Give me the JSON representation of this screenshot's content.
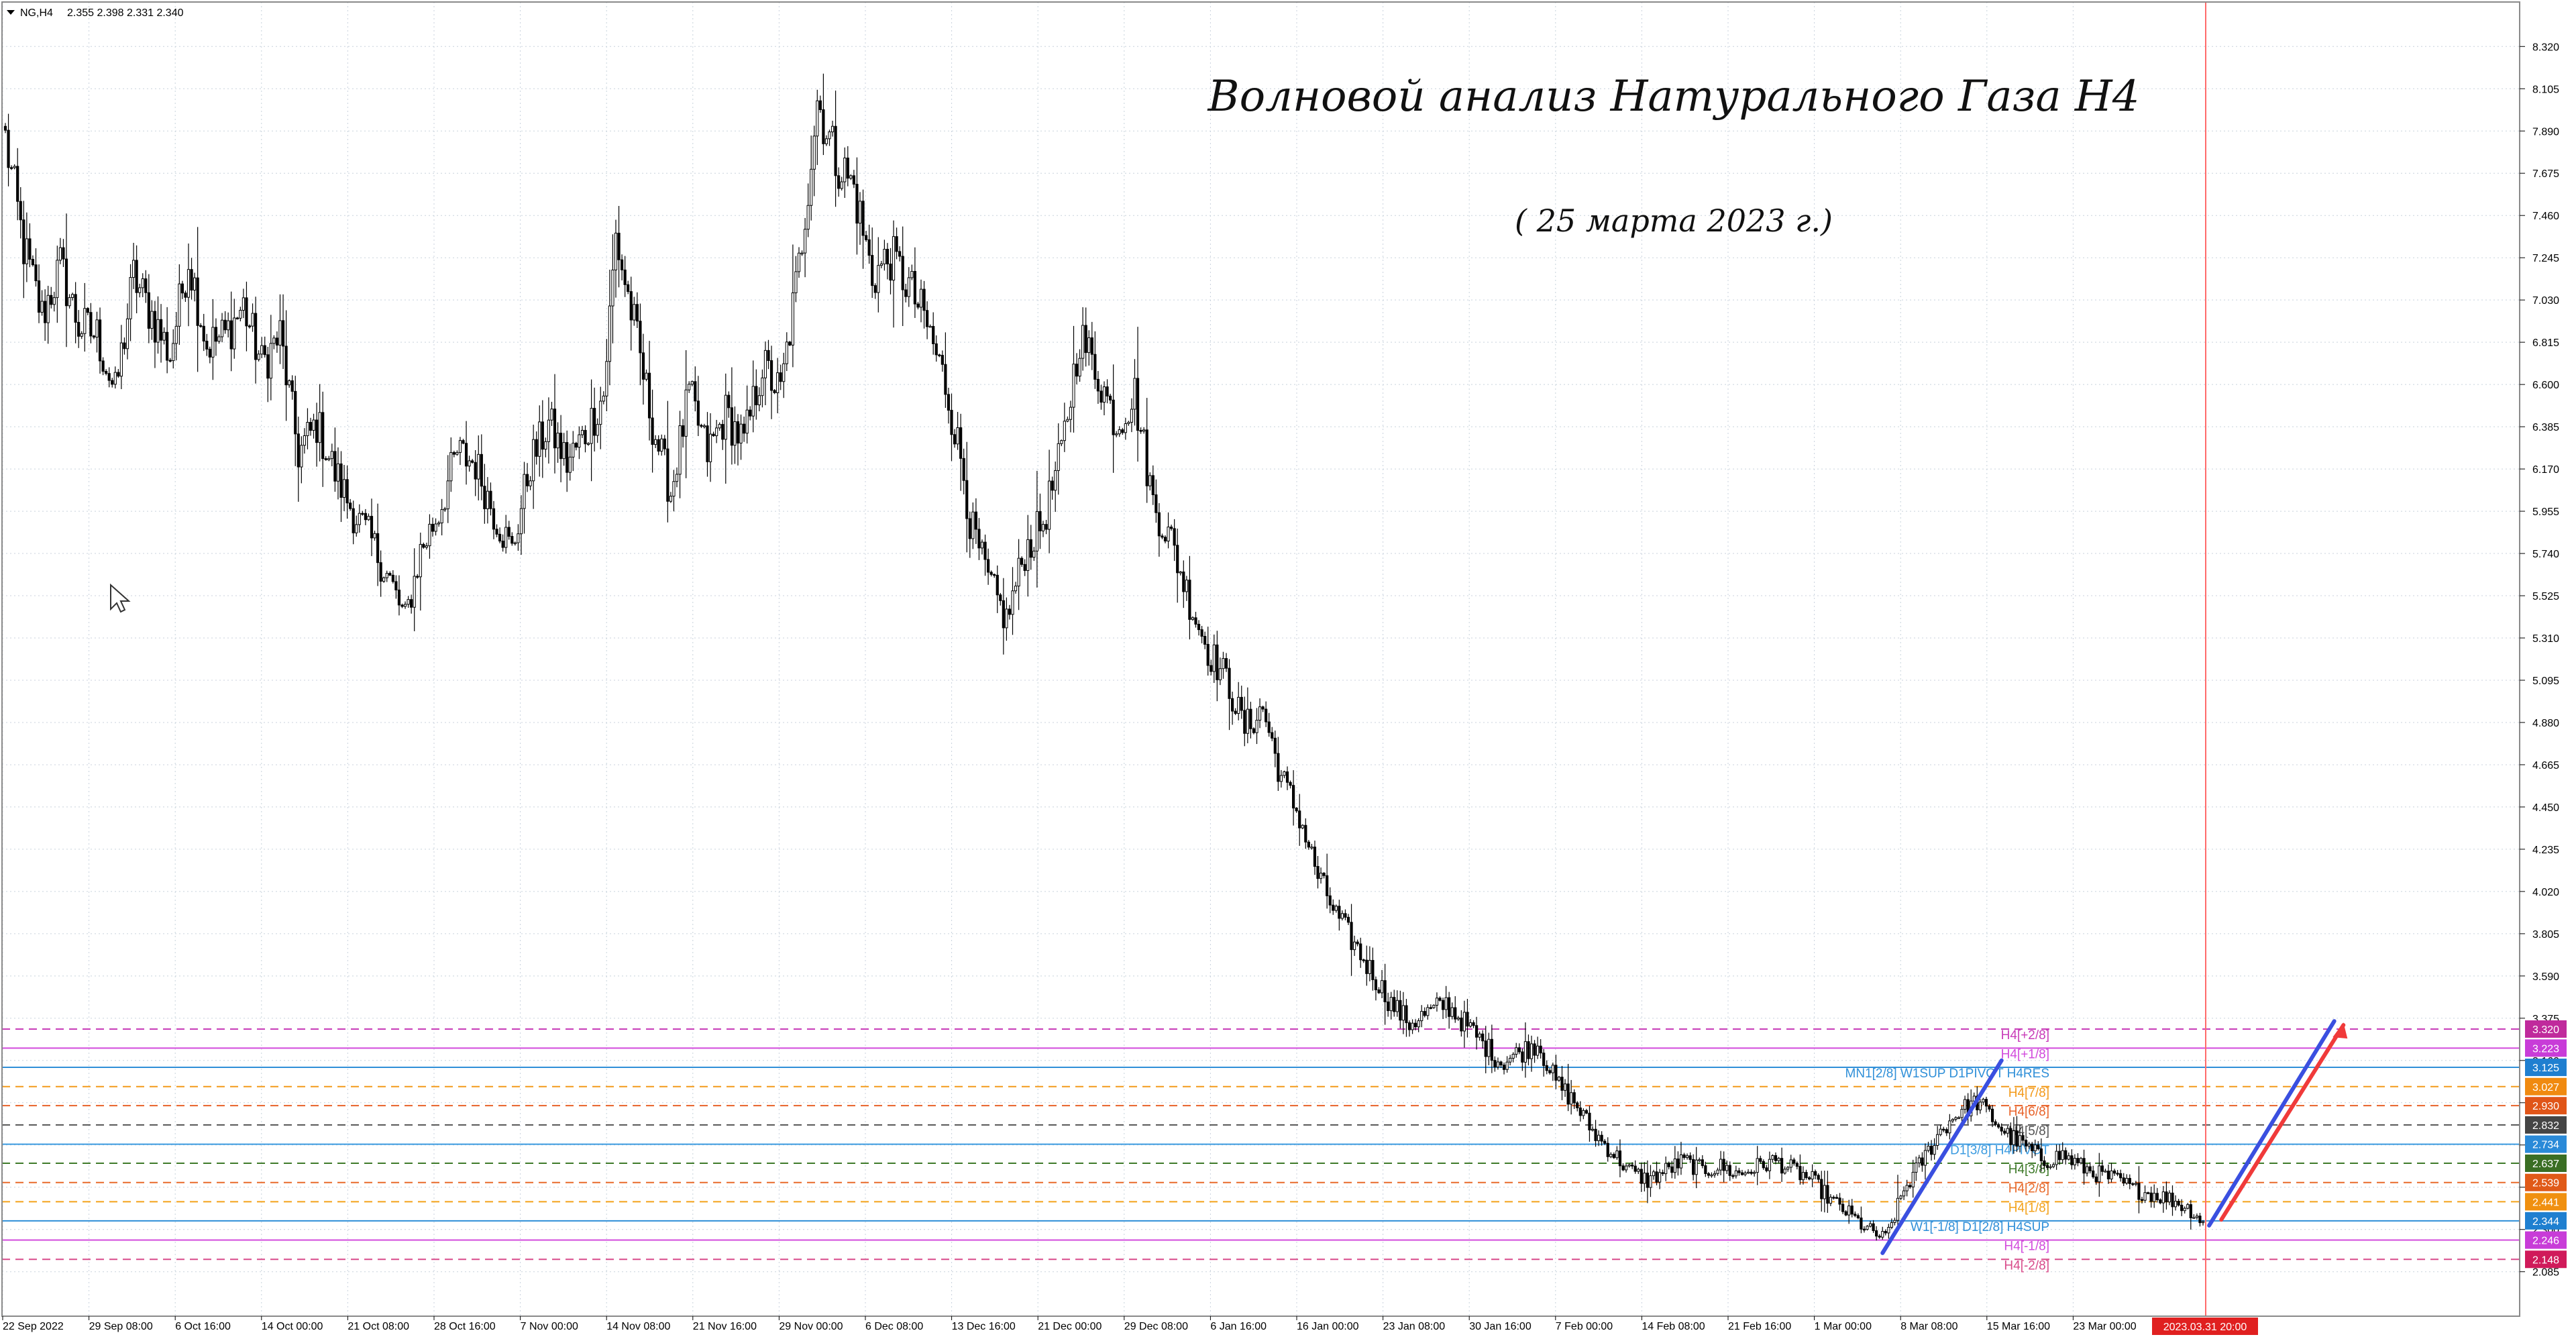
{
  "header": {
    "symbol": "NG,H4",
    "ohlc": "2.355 2.398 2.331 2.340"
  },
  "title": "Волновой анализ Натурального Газа H4",
  "subtitle": "( 25 марта 2023 г.)",
  "colors": {
    "grid": "#c8d2dc",
    "candle": "#000000",
    "wave_blue": "#3a4fe0",
    "wave_red": "#f03a3a",
    "vline": "#ff6b6b",
    "date_tag": "#e02020"
  },
  "chart_data": {
    "type": "candlestick",
    "ylim": [
      1.985,
      8.42
    ],
    "y_ticks": [
      "8.320",
      "8.105",
      "7.890",
      "7.675",
      "7.460",
      "7.245",
      "7.030",
      "6.815",
      "6.600",
      "6.385",
      "6.170",
      "5.955",
      "5.740",
      "5.525",
      "5.310",
      "5.095",
      "4.880",
      "4.665",
      "4.450",
      "4.235",
      "4.020",
      "3.805",
      "3.590",
      "3.375",
      "3.160",
      "2.945",
      "2.730",
      "2.515",
      "2.300",
      "2.085"
    ],
    "x_labels": [
      "22 Sep 2022",
      "29 Sep 08:00",
      "6 Oct 16:00",
      "14 Oct 00:00",
      "21 Oct 08:00",
      "28 Oct 16:00",
      "7 Nov 00:00",
      "14 Nov 08:00",
      "21 Nov 16:00",
      "29 Nov 00:00",
      "6 Dec 08:00",
      "13 Dec 16:00",
      "21 Dec 00:00",
      "29 Dec 08:00",
      "6 Jan 16:00",
      "16 Jan 00:00",
      "23 Jan 08:00",
      "30 Jan 16:00",
      "7 Feb 00:00",
      "14 Feb 08:00",
      "21 Feb 16:00",
      "1 Mar 00:00",
      "8 Mar 08:00",
      "15 Mar 16:00",
      "23 Mar 00:00"
    ],
    "time_marker": "2023.03.31 20:00",
    "price_path": [
      [
        0,
        7.85
      ],
      [
        6,
        7.3
      ],
      [
        12,
        6.95
      ],
      [
        18,
        7.2
      ],
      [
        24,
        6.9
      ],
      [
        30,
        6.85
      ],
      [
        36,
        6.55
      ],
      [
        42,
        7.15
      ],
      [
        48,
        6.95
      ],
      [
        54,
        6.75
      ],
      [
        60,
        7.25
      ],
      [
        66,
        6.8
      ],
      [
        72,
        6.85
      ],
      [
        78,
        7.0
      ],
      [
        84,
        6.7
      ],
      [
        90,
        6.85
      ],
      [
        96,
        6.25
      ],
      [
        102,
        6.4
      ],
      [
        108,
        6.15
      ],
      [
        114,
        5.95
      ],
      [
        120,
        5.8
      ],
      [
        126,
        5.6
      ],
      [
        131,
        5.4
      ],
      [
        136,
        5.75
      ],
      [
        142,
        5.95
      ],
      [
        148,
        6.25
      ],
      [
        154,
        6.2
      ],
      [
        160,
        5.95
      ],
      [
        166,
        5.75
      ],
      [
        172,
        6.2
      ],
      [
        178,
        6.4
      ],
      [
        184,
        6.2
      ],
      [
        190,
        6.35
      ],
      [
        196,
        6.55
      ],
      [
        200,
        7.35
      ],
      [
        206,
        6.9
      ],
      [
        212,
        6.4
      ],
      [
        218,
        6.05
      ],
      [
        224,
        6.55
      ],
      [
        230,
        6.25
      ],
      [
        236,
        6.45
      ],
      [
        242,
        6.3
      ],
      [
        248,
        6.7
      ],
      [
        254,
        6.55
      ],
      [
        260,
        7.2
      ],
      [
        266,
        8.05
      ],
      [
        272,
        7.75
      ],
      [
        278,
        7.6
      ],
      [
        284,
        7.15
      ],
      [
        290,
        7.25
      ],
      [
        296,
        7.1
      ],
      [
        302,
        6.9
      ],
      [
        308,
        6.6
      ],
      [
        314,
        6.15
      ],
      [
        316,
        5.9
      ],
      [
        322,
        5.6
      ],
      [
        328,
        5.4
      ],
      [
        334,
        5.75
      ],
      [
        340,
        5.9
      ],
      [
        346,
        6.25
      ],
      [
        352,
        6.85
      ],
      [
        358,
        6.65
      ],
      [
        364,
        6.4
      ],
      [
        370,
        6.55
      ],
      [
        376,
        6.0
      ],
      [
        382,
        5.8
      ],
      [
        388,
        5.5
      ],
      [
        394,
        5.25
      ],
      [
        400,
        5.1
      ],
      [
        406,
        4.85
      ],
      [
        412,
        4.95
      ],
      [
        418,
        4.6
      ],
      [
        424,
        4.4
      ],
      [
        430,
        4.1
      ],
      [
        436,
        3.9
      ],
      [
        442,
        3.75
      ],
      [
        448,
        3.6
      ],
      [
        454,
        3.45
      ],
      [
        460,
        3.35
      ],
      [
        466,
        3.4
      ],
      [
        472,
        3.45
      ],
      [
        478,
        3.35
      ],
      [
        484,
        3.25
      ],
      [
        490,
        3.15
      ],
      [
        496,
        3.2
      ],
      [
        502,
        3.25
      ],
      [
        508,
        3.05
      ],
      [
        514,
        2.95
      ],
      [
        520,
        2.8
      ],
      [
        526,
        2.7
      ],
      [
        532,
        2.6
      ],
      [
        538,
        2.55
      ],
      [
        544,
        2.6
      ],
      [
        550,
        2.65
      ],
      [
        556,
        2.6
      ],
      [
        562,
        2.62
      ],
      [
        568,
        2.58
      ],
      [
        574,
        2.62
      ],
      [
        580,
        2.65
      ],
      [
        586,
        2.6
      ],
      [
        592,
        2.55
      ],
      [
        598,
        2.45
      ],
      [
        604,
        2.38
      ],
      [
        610,
        2.3
      ],
      [
        616,
        2.25
      ],
      [
        622,
        2.5
      ],
      [
        628,
        2.65
      ],
      [
        634,
        2.8
      ],
      [
        640,
        2.9
      ],
      [
        646,
        2.95
      ],
      [
        652,
        2.85
      ],
      [
        656,
        2.78
      ],
      [
        662,
        2.72
      ],
      [
        668,
        2.65
      ],
      [
        674,
        2.68
      ],
      [
        680,
        2.62
      ],
      [
        686,
        2.58
      ],
      [
        692,
        2.55
      ],
      [
        698,
        2.5
      ],
      [
        704,
        2.48
      ],
      [
        710,
        2.45
      ],
      [
        716,
        2.4
      ],
      [
        720,
        2.34
      ]
    ]
  },
  "levels": [
    {
      "price": 3.32,
      "label": "H4[+2/8]",
      "tag": "3.320",
      "color": "#c83cb8",
      "tag_color": "#c02a9c",
      "style": "dash"
    },
    {
      "price": 3.223,
      "label": "H4[+1/8]",
      "tag": "3.223",
      "color": "#d24adc",
      "tag_color": "#c83cd8",
      "style": "solid"
    },
    {
      "price": 3.125,
      "label": "MN1[2/8] W1SUP D1PIVOT H4RES",
      "tag": "3.125",
      "color": "#2f8fd8",
      "tag_color": "#1f7fd0",
      "style": "solid"
    },
    {
      "price": 3.027,
      "label": "H4[7/8]",
      "tag": "3.027",
      "color": "#f39a1a",
      "tag_color": "#f08a10",
      "style": "dash"
    },
    {
      "price": 2.93,
      "label": "H4[6/8]",
      "tag": "2.930",
      "color": "#e8632a",
      "tag_color": "#e05518",
      "style": "dash"
    },
    {
      "price": 2.832,
      "label": "H4[5/8]",
      "tag": "2.832",
      "color": "#555555",
      "tag_color": "#454545",
      "style": "dash"
    },
    {
      "price": 2.734,
      "label": "D1[3/8] H4PIVOT",
      "tag": "2.734",
      "color": "#3b9be0",
      "tag_color": "#2a8ad8",
      "style": "solid"
    },
    {
      "price": 2.637,
      "label": "H4[3/8]",
      "tag": "2.637",
      "color": "#3f7a2a",
      "tag_color": "#3a6e24",
      "style": "dash"
    },
    {
      "price": 2.539,
      "label": "H4[2/8]",
      "tag": "2.539",
      "color": "#e86a2a",
      "tag_color": "#e05a18",
      "style": "dash"
    },
    {
      "price": 2.441,
      "label": "H4[1/8]",
      "tag": "2.441",
      "color": "#f3a21a",
      "tag_color": "#f09010",
      "style": "dash"
    },
    {
      "price": 2.344,
      "label": "W1[-1/8] D1[2/8] H4SUP",
      "tag": "2.344",
      "color": "#2f8fd8",
      "tag_color": "#1f7fd0",
      "style": "solid"
    },
    {
      "price": 2.246,
      "label": "H4[-1/8]",
      "tag": "2.246",
      "color": "#d24adc",
      "tag_color": "#c83cd8",
      "style": "solid"
    },
    {
      "price": 2.148,
      "label": "H4[-2/8]",
      "tag": "2.148",
      "color": "#d84a8a",
      "tag_color": "#d01a5a",
      "style": "dash"
    }
  ],
  "wave_lines": [
    {
      "name": "",
      "color": "#3a4fe0",
      "from": [
        615,
        2.18
      ],
      "to": [
        654,
        3.16
      ]
    },
    {
      "name": "",
      "color": "#3a4fe0",
      "from": [
        722,
        2.32
      ],
      "to": [
        763,
        3.36
      ]
    },
    {
      "name": "",
      "color": "#f03a3a",
      "from": [
        726,
        2.35
      ],
      "to": [
        766,
        3.34
      ]
    }
  ]
}
